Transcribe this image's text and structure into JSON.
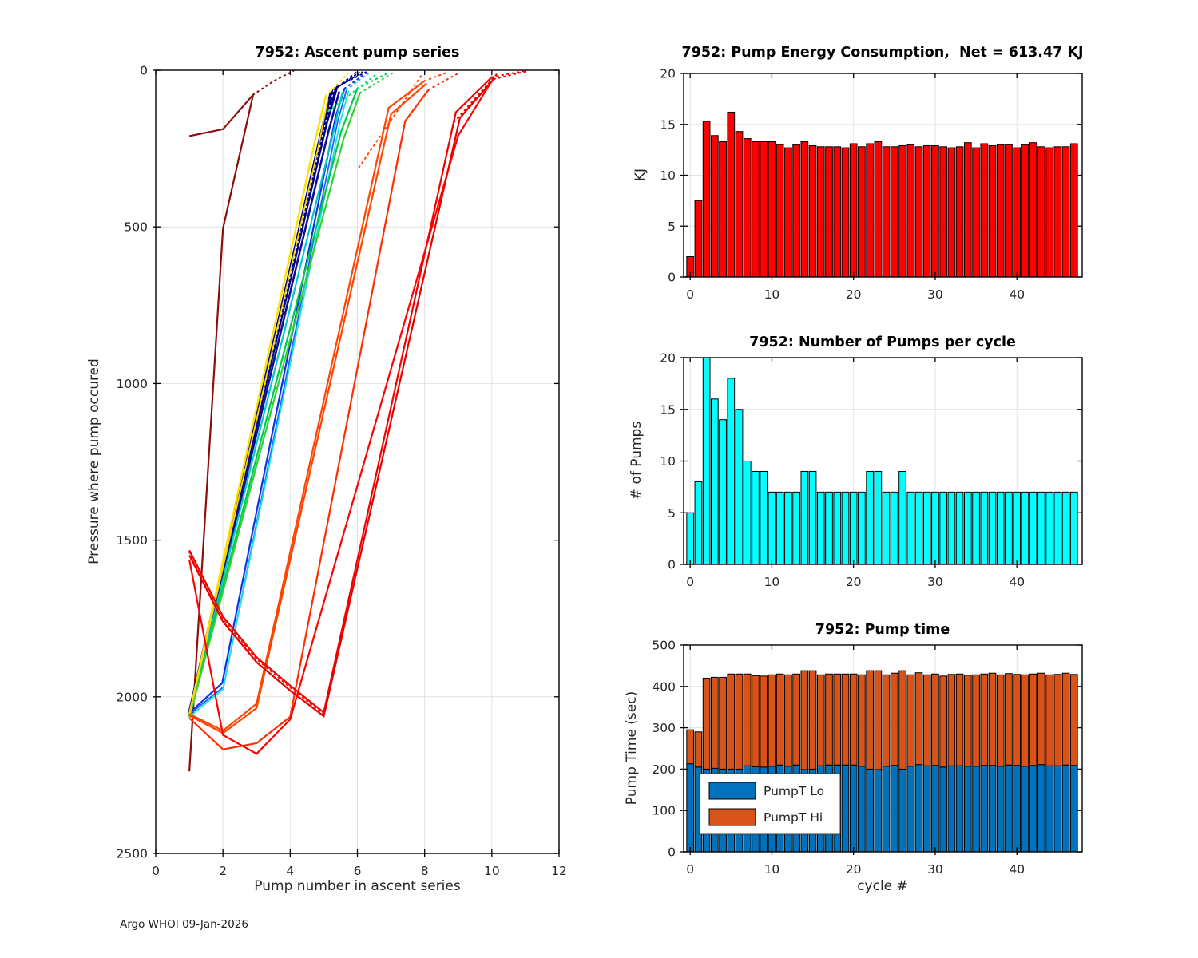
{
  "page": {
    "footer": "Argo WHOI 09-Jan-2026"
  },
  "chart_data": [
    {
      "type": "line",
      "title": "7952: Ascent pump series",
      "xlabel": "Pump number in ascent series",
      "ylabel": "Pressure where pump occured",
      "xlim": [
        0,
        12
      ],
      "ylim": [
        0,
        2500
      ],
      "y_reversed": true,
      "xticks": [
        0,
        2,
        4,
        6,
        8,
        10,
        12
      ],
      "yticks": [
        0,
        500,
        1000,
        1500,
        2000,
        2500
      ],
      "grid": true,
      "colormap": "jet (line color = cycle number, dark blue = early, dark red = late)",
      "series": [
        {
          "color": "#8E0E0A",
          "w": 2.2,
          "points": [
            [
              1,
              210
            ],
            [
              2,
              188
            ],
            [
              2.9,
              78
            ]
          ]
        },
        {
          "color": "#8E0E0A",
          "w": 2,
          "style": "dotted",
          "points": [
            [
              2.9,
              78
            ],
            [
              3.5,
              35
            ],
            [
              4.1,
              2
            ]
          ]
        },
        {
          "color": "#8E0E0A",
          "w": 2.2,
          "points": [
            [
              1,
              2238
            ],
            [
              2,
              505
            ],
            [
              2.9,
              78
            ]
          ]
        },
        {
          "color": "#000080",
          "w": 2.6,
          "points": [
            [
              1,
              2046
            ],
            [
              4.88,
              215
            ],
            [
              5.2,
              72
            ]
          ]
        },
        {
          "color": "#000080",
          "w": 2,
          "style": "dotted",
          "points": [
            [
              5.2,
              72
            ],
            [
              5.95,
              8
            ]
          ]
        },
        {
          "color": "#00008B",
          "w": 2.6,
          "points": [
            [
              1,
              2050
            ],
            [
              4.95,
              200
            ],
            [
              5.28,
              64
            ]
          ]
        },
        {
          "color": "#00008B",
          "w": 2,
          "style": "dotted",
          "points": [
            [
              5.28,
              64
            ],
            [
              6.05,
              7
            ]
          ]
        },
        {
          "color": "#040473",
          "w": 2.6,
          "points": [
            [
              1,
              2054
            ],
            [
              5.02,
              185
            ],
            [
              5.34,
              58
            ]
          ]
        },
        {
          "color": "#040473",
          "w": 2,
          "style": "dotted",
          "points": [
            [
              5.34,
              58
            ],
            [
              6.15,
              6
            ]
          ]
        },
        {
          "color": "#000090",
          "w": 2.6,
          "points": [
            [
              1,
              2058
            ],
            [
              5.08,
              172
            ],
            [
              5.4,
              52
            ]
          ]
        },
        {
          "color": "#000090",
          "w": 2,
          "style": "dotted",
          "points": [
            [
              5.4,
              52
            ],
            [
              6.25,
              6
            ]
          ]
        },
        {
          "color": "#101090",
          "w": 2.6,
          "points": [
            [
              1,
              2062
            ],
            [
              5.14,
              195
            ],
            [
              5.46,
              68
            ]
          ]
        },
        {
          "color": "#FFFFFF",
          "w": 1.3,
          "style": "dotted",
          "points": [
            [
              1,
              2052
            ],
            [
              5.0,
              190
            ],
            [
              5.3,
              62
            ]
          ]
        },
        {
          "color": "#0535E8",
          "w": 2.2,
          "points": [
            [
              1,
              2052
            ],
            [
              1.98,
              1956
            ],
            [
              5.35,
              150
            ],
            [
              5.62,
              58
            ]
          ]
        },
        {
          "color": "#0535E8",
          "w": 2,
          "style": "dotted",
          "points": [
            [
              5.62,
              58
            ],
            [
              6.3,
              6
            ]
          ]
        },
        {
          "color": "#1E62F0",
          "w": 1.8,
          "points": [
            [
              1,
              2056
            ],
            [
              2.02,
              1968
            ],
            [
              5.42,
              160
            ],
            [
              5.68,
              62
            ]
          ]
        },
        {
          "color": "#00C9CE",
          "w": 2.2,
          "points": [
            [
              1,
              2060
            ],
            [
              5.25,
              215
            ],
            [
              5.55,
              72
            ]
          ]
        },
        {
          "color": "#00C9CE",
          "w": 2,
          "style": "dotted",
          "points": [
            [
              5.55,
              72
            ],
            [
              6.35,
              8
            ]
          ]
        },
        {
          "color": "#19E3E3",
          "w": 1.8,
          "points": [
            [
              1,
              2064
            ],
            [
              2,
              1976
            ],
            [
              5.48,
              168
            ],
            [
              5.74,
              66
            ]
          ]
        },
        {
          "color": "#00C851",
          "w": 2.2,
          "points": [
            [
              1,
              2062
            ],
            [
              5.52,
              195
            ],
            [
              6.0,
              58
            ]
          ]
        },
        {
          "color": "#00C851",
          "w": 2,
          "style": "dotted",
          "points": [
            [
              6.0,
              58
            ],
            [
              6.95,
              7
            ]
          ]
        },
        {
          "color": "#2FD32F",
          "w": 2.2,
          "points": [
            [
              1,
              2066
            ],
            [
              5.6,
              215
            ],
            [
              6.08,
              72
            ]
          ]
        },
        {
          "color": "#2FD32F",
          "w": 2,
          "style": "dotted",
          "points": [
            [
              6.08,
              72
            ],
            [
              7.05,
              9
            ]
          ]
        },
        {
          "color": "#00E673",
          "w": 2,
          "style": "dotted",
          "points": [
            [
              5.15,
              130
            ],
            [
              6.55,
              14
            ]
          ]
        },
        {
          "color": "#FFE100",
          "w": 2.4,
          "points": [
            [
              1,
              2056
            ],
            [
              4.72,
              235
            ],
            [
              5.06,
              82
            ]
          ]
        },
        {
          "color": "#FFE100",
          "w": 2,
          "style": "dotted",
          "points": [
            [
              5.06,
              82
            ],
            [
              5.72,
              10
            ]
          ]
        },
        {
          "color": "#F5D800",
          "w": 1.8,
          "points": [
            [
              1,
              2060
            ],
            [
              4.82,
              255
            ],
            [
              5.12,
              92
            ]
          ]
        },
        {
          "color": "#FF4500",
          "w": 2.2,
          "points": [
            [
              1,
              2055
            ],
            [
              2,
              2108
            ],
            [
              3,
              2022
            ],
            [
              6.93,
              120
            ],
            [
              8.0,
              34
            ]
          ]
        },
        {
          "color": "#FF4500",
          "w": 2,
          "style": "dotted",
          "points": [
            [
              8.0,
              34
            ],
            [
              8.72,
              5
            ]
          ]
        },
        {
          "color": "#FF4500",
          "w": 2.2,
          "points": [
            [
              1,
              2060
            ],
            [
              2,
              2116
            ],
            [
              3,
              2036
            ],
            [
              7.0,
              140
            ],
            [
              8.06,
              42
            ]
          ]
        },
        {
          "color": "#FF2D00",
          "w": 2.2,
          "points": [
            [
              1,
              2068
            ],
            [
              2,
              2168
            ],
            [
              3,
              2148
            ],
            [
              4,
              2064
            ],
            [
              7.42,
              162
            ],
            [
              8.12,
              62
            ]
          ]
        },
        {
          "color": "#FF2D00",
          "w": 2,
          "style": "dotted",
          "points": [
            [
              8.12,
              62
            ],
            [
              9.05,
              7
            ]
          ]
        },
        {
          "color": "#FF4500",
          "w": 2,
          "style": "dotted",
          "points": [
            [
              6.05,
              310
            ],
            [
              7.92,
              14
            ]
          ]
        },
        {
          "color": "#F40000",
          "w": 2.2,
          "points": [
            [
              1,
              1532
            ],
            [
              2,
              1744
            ],
            [
              3,
              1874
            ],
            [
              4,
              1964
            ],
            [
              5,
              2050
            ],
            [
              8.93,
              134
            ],
            [
              10.0,
              22
            ]
          ]
        },
        {
          "color": "#F40000",
          "w": 2,
          "style": "dotted",
          "points": [
            [
              10.0,
              22
            ],
            [
              10.92,
              3
            ]
          ]
        },
        {
          "color": "#E60000",
          "w": 2.2,
          "points": [
            [
              1,
              1548
            ],
            [
              2,
              1760
            ],
            [
              3,
              1890
            ],
            [
              4,
              1980
            ],
            [
              5,
              2062
            ],
            [
              9.05,
              152
            ],
            [
              10.06,
              28
            ]
          ]
        },
        {
          "color": "#E60000",
          "w": 2,
          "style": "dotted",
          "points": [
            [
              10.06,
              28
            ],
            [
              11.0,
              4
            ]
          ]
        },
        {
          "color": "#FF0000",
          "w": 2.2,
          "points": [
            [
              1,
              1562
            ],
            [
              2,
              2122
            ],
            [
              3,
              2182
            ],
            [
              4,
              2072
            ],
            [
              9.0,
              208
            ],
            [
              10.0,
              34
            ]
          ]
        },
        {
          "color": "#FF0F00",
          "w": 2,
          "style": "dotted",
          "points": [
            [
              1,
              1538
            ],
            [
              2,
              1750
            ],
            [
              3,
              1880
            ],
            [
              4,
              1970
            ],
            [
              5,
              2056
            ]
          ]
        },
        {
          "color": "#F40000",
          "w": 2,
          "style": "dotted",
          "points": [
            [
              8.88,
              165
            ],
            [
              10.15,
              12
            ]
          ]
        }
      ]
    },
    {
      "type": "bar",
      "title": "7952: Pump Energy Consumption,  Net = 613.47 KJ",
      "net_kj": 613.47,
      "xlabel": "",
      "ylabel": "KJ",
      "xlim": [
        -0.8,
        48
      ],
      "ylim": [
        0,
        20
      ],
      "xticks": [
        0,
        10,
        20,
        30,
        40
      ],
      "yticks": [
        0,
        5,
        10,
        15,
        20
      ],
      "grid": true,
      "bar_color": "#FF0000",
      "categories_note": "cycle index 0-47",
      "values": [
        2.0,
        7.5,
        15.3,
        13.9,
        13.3,
        16.2,
        14.3,
        13.6,
        13.3,
        13.3,
        13.3,
        13.0,
        12.7,
        13.0,
        13.3,
        12.9,
        12.8,
        12.8,
        12.8,
        12.7,
        13.1,
        12.8,
        13.1,
        13.3,
        12.8,
        12.8,
        12.9,
        13.0,
        12.8,
        12.9,
        12.9,
        12.8,
        12.7,
        12.8,
        13.2,
        12.7,
        13.1,
        12.9,
        13.0,
        13.0,
        12.7,
        13.0,
        13.2,
        12.8,
        12.7,
        12.8,
        12.8,
        13.1
      ]
    },
    {
      "type": "bar",
      "title": "7952: Number of Pumps per cycle",
      "xlabel": "",
      "ylabel": "# of Pumps",
      "xlim": [
        -0.8,
        48
      ],
      "ylim": [
        0,
        20
      ],
      "xticks": [
        0,
        10,
        20,
        30,
        40
      ],
      "yticks": [
        0,
        5,
        10,
        15,
        20
      ],
      "grid": true,
      "bar_color": "#00FFFF",
      "categories_note": "cycle index 0-47",
      "values": [
        5,
        8,
        20,
        16,
        14,
        18,
        15,
        10,
        9,
        9,
        7,
        7,
        7,
        7,
        9,
        9,
        7,
        7,
        7,
        7,
        7,
        7,
        9,
        9,
        7,
        7,
        9,
        7,
        7,
        7,
        7,
        7,
        7,
        7,
        7,
        7,
        7,
        7,
        7,
        7,
        7,
        7,
        7,
        7,
        7,
        7,
        7,
        7
      ]
    },
    {
      "type": "stackedbar",
      "title": "7952: Pump time",
      "xlabel": "cycle #",
      "ylabel": "Pump Time (sec)",
      "xlim": [
        -0.8,
        48
      ],
      "ylim": [
        0,
        500
      ],
      "xticks": [
        0,
        10,
        20,
        30,
        40
      ],
      "yticks": [
        0,
        100,
        200,
        300,
        400,
        500
      ],
      "grid": true,
      "legend": "lower-left",
      "categories_note": "cycle index 0-47",
      "series": [
        {
          "name": "PumpT Lo",
          "color": "#0072BD",
          "values": [
            213,
            205,
            200,
            202,
            200,
            200,
            200,
            208,
            206,
            205,
            207,
            210,
            207,
            210,
            199,
            200,
            208,
            210,
            210,
            210,
            210,
            207,
            200,
            199,
            207,
            209,
            200,
            207,
            211,
            208,
            209,
            205,
            208,
            208,
            207,
            207,
            209,
            209,
            207,
            210,
            209,
            207,
            209,
            211,
            208,
            208,
            210,
            209
          ]
        },
        {
          "name": "PumpT Hi",
          "color": "#D95319",
          "values": [
            82,
            85,
            220,
            220,
            222,
            230,
            230,
            222,
            220,
            220,
            221,
            220,
            221,
            220,
            239,
            238,
            220,
            220,
            220,
            220,
            220,
            221,
            238,
            239,
            221,
            223,
            238,
            221,
            222,
            220,
            221,
            220,
            221,
            222,
            220,
            221,
            221,
            223,
            221,
            221,
            220,
            221,
            221,
            221,
            220,
            221,
            222,
            220
          ]
        }
      ]
    }
  ]
}
